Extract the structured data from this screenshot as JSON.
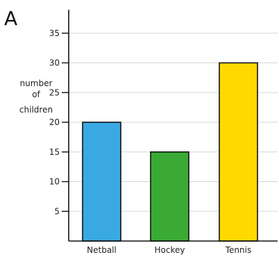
{
  "panel_label": "A",
  "chart_data": {
    "type": "bar",
    "title": "",
    "xlabel": "",
    "ylabel": [
      "number",
      "of",
      "children"
    ],
    "categories": [
      "Netball",
      "Hockey",
      "Tennis"
    ],
    "values": [
      20,
      15,
      30
    ],
    "bar_colors": [
      "#3aa9e2",
      "#3aaa35",
      "#ffd900"
    ],
    "yticks": [
      5,
      10,
      15,
      20,
      25,
      30,
      35
    ],
    "ylim": [
      0,
      40
    ],
    "grid": true
  }
}
